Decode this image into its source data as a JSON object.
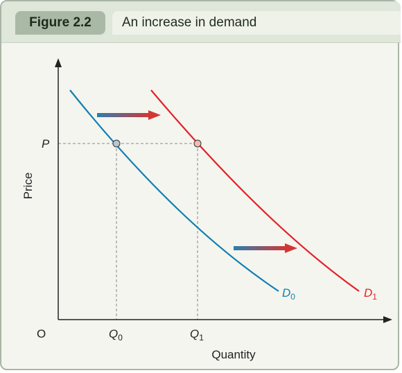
{
  "figure": {
    "label": "Figure 2.2",
    "title": "An increase in demand"
  },
  "axes": {
    "ylabel": "Price",
    "xlabel": "Quantity",
    "origin": "O",
    "price_tick": "P",
    "q0_tick": {
      "main": "Q",
      "sub": "0"
    },
    "q1_tick": {
      "main": "Q",
      "sub": "1"
    }
  },
  "curves": {
    "d0": {
      "main": "D",
      "sub": "0",
      "color": "#0f7fb4"
    },
    "d1": {
      "main": "D",
      "sub": "1",
      "color": "#e3202a"
    }
  },
  "colors": {
    "axis": "#222222",
    "guide": "#888888",
    "arrow_start": "#2b7fb0",
    "arrow_end": "#d33636",
    "point_d0": "#b9c5d3",
    "point_d1": "#f1bcb0"
  }
}
